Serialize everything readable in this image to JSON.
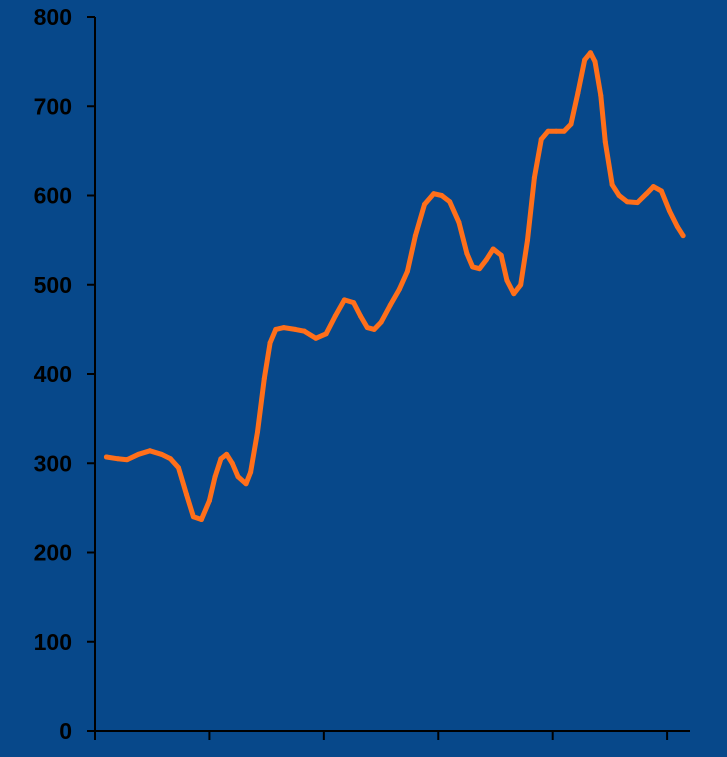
{
  "colors": {
    "background": "#07488a",
    "axis": "#000000",
    "tick_label": "#000000",
    "series_line": "#ff6f1a"
  },
  "chart_data": {
    "type": "line",
    "title": "",
    "xlabel": "",
    "ylabel": "",
    "ylim": [
      0,
      800
    ],
    "y_ticks": [
      0,
      100,
      200,
      300,
      400,
      500,
      600,
      700,
      800
    ],
    "y_tick_labels": [
      "0",
      "100",
      "200",
      "300",
      "400",
      "500",
      "600",
      "700",
      "800"
    ],
    "x_ticks": [
      0,
      1,
      2,
      3,
      4,
      5
    ],
    "x_tick_labels": [
      "",
      "",
      "",
      "",
      "",
      ""
    ],
    "xlim": [
      0,
      5.2
    ],
    "grid": false,
    "legend": "none",
    "series": [
      {
        "values": [
          [
            0.1,
            307
          ],
          [
            0.2,
            305
          ],
          [
            0.28,
            304
          ],
          [
            0.38,
            310
          ],
          [
            0.48,
            314
          ],
          [
            0.58,
            310
          ],
          [
            0.66,
            305
          ],
          [
            0.73,
            295
          ],
          [
            0.8,
            265
          ],
          [
            0.86,
            240
          ],
          [
            0.93,
            237
          ],
          [
            1.0,
            258
          ],
          [
            1.05,
            285
          ],
          [
            1.1,
            305
          ],
          [
            1.15,
            310
          ],
          [
            1.2,
            300
          ],
          [
            1.25,
            285
          ],
          [
            1.32,
            277
          ],
          [
            1.36,
            290
          ],
          [
            1.42,
            335
          ],
          [
            1.48,
            395
          ],
          [
            1.53,
            435
          ],
          [
            1.58,
            450
          ],
          [
            1.65,
            452
          ],
          [
            1.75,
            450
          ],
          [
            1.83,
            448
          ],
          [
            1.93,
            440
          ],
          [
            2.02,
            445
          ],
          [
            2.1,
            465
          ],
          [
            2.18,
            483
          ],
          [
            2.26,
            480
          ],
          [
            2.32,
            465
          ],
          [
            2.38,
            452
          ],
          [
            2.44,
            450
          ],
          [
            2.5,
            458
          ],
          [
            2.58,
            477
          ],
          [
            2.66,
            495
          ],
          [
            2.73,
            515
          ],
          [
            2.8,
            555
          ],
          [
            2.88,
            590
          ],
          [
            2.96,
            602
          ],
          [
            3.03,
            600
          ],
          [
            3.1,
            593
          ],
          [
            3.18,
            570
          ],
          [
            3.25,
            535
          ],
          [
            3.3,
            520
          ],
          [
            3.36,
            518
          ],
          [
            3.42,
            528
          ],
          [
            3.48,
            540
          ],
          [
            3.55,
            533
          ],
          [
            3.6,
            505
          ],
          [
            3.66,
            490
          ],
          [
            3.72,
            500
          ],
          [
            3.78,
            550
          ],
          [
            3.84,
            620
          ],
          [
            3.9,
            663
          ],
          [
            3.96,
            672
          ],
          [
            4.03,
            672
          ],
          [
            4.1,
            672
          ],
          [
            4.16,
            680
          ],
          [
            4.22,
            715
          ],
          [
            4.28,
            752
          ],
          [
            4.33,
            760
          ],
          [
            4.37,
            750
          ],
          [
            4.42,
            712
          ],
          [
            4.46,
            660
          ],
          [
            4.52,
            612
          ],
          [
            4.58,
            600
          ],
          [
            4.65,
            593
          ],
          [
            4.74,
            592
          ],
          [
            4.82,
            602
          ],
          [
            4.88,
            610
          ],
          [
            4.95,
            605
          ],
          [
            5.02,
            583
          ],
          [
            5.09,
            565
          ],
          [
            5.14,
            555
          ]
        ]
      }
    ]
  }
}
